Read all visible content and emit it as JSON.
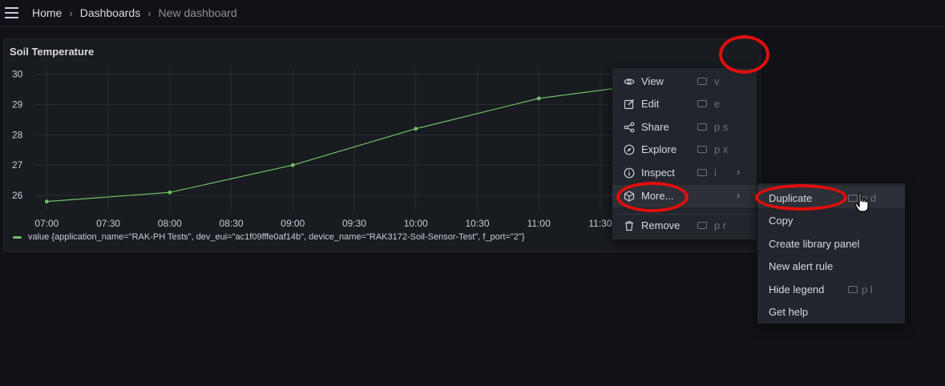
{
  "breadcrumb": {
    "home": "Home",
    "dashboards": "Dashboards",
    "current": "New dashboard",
    "sep": "›"
  },
  "panel": {
    "title": "Soil Temperature",
    "legend": "value {application_name=\"RAK-PH Tests\", dev_eui=\"ac1f09fffe0af14b\", device_name=\"RAK3172-Soil-Sensor-Test\", f_port=\"2\"}"
  },
  "chart_data": {
    "type": "line",
    "y_ticks": [
      "30",
      "29",
      "28",
      "27",
      "26"
    ],
    "x_ticks": [
      "07:00",
      "07:30",
      "08:00",
      "08:30",
      "09:00",
      "09:30",
      "10:00",
      "10:30",
      "11:00",
      "11:30"
    ],
    "ylim": [
      25.5,
      30.2
    ],
    "xlim_hours": [
      6.9,
      11.8
    ],
    "series": [
      {
        "x": [
          "07:00",
          "08:00",
          "09:00",
          "10:00",
          "11:00",
          "11:45"
        ],
        "values": [
          25.8,
          26.1,
          27.0,
          28.2,
          29.2,
          29.6
        ]
      }
    ],
    "color": "#73bf69",
    "grid": true
  },
  "menu": {
    "items": [
      {
        "label": "View",
        "icon": "eye-icon",
        "shortcut": "v",
        "has_submenu": false
      },
      {
        "label": "Edit",
        "icon": "edit-icon",
        "shortcut": "e",
        "has_submenu": false
      },
      {
        "label": "Share",
        "icon": "share-icon",
        "shortcut": "p s",
        "has_submenu": false
      },
      {
        "label": "Explore",
        "icon": "compass-icon",
        "shortcut": "p x",
        "has_submenu": false
      },
      {
        "label": "Inspect",
        "icon": "info-icon",
        "shortcut": "i",
        "has_submenu": true
      },
      {
        "label": "More...",
        "icon": "cube-icon",
        "shortcut": "",
        "has_submenu": true
      },
      {
        "label": "Remove",
        "icon": "trash-icon",
        "shortcut": "p r",
        "has_submenu": false
      }
    ],
    "chevron": "›"
  },
  "submenu": {
    "items": [
      {
        "label": "Duplicate",
        "shortcut": "p d"
      },
      {
        "label": "Copy",
        "shortcut": ""
      },
      {
        "label": "Create library panel",
        "shortcut": ""
      },
      {
        "label": "New alert rule",
        "shortcut": ""
      },
      {
        "label": "Hide legend",
        "shortcut": "p l"
      },
      {
        "label": "Get help",
        "shortcut": ""
      }
    ]
  },
  "colors": {
    "background": "#111217",
    "panel": "#181b1f",
    "menu": "#22252b",
    "series": "#73bf69",
    "annotation": "#e10e0e"
  }
}
